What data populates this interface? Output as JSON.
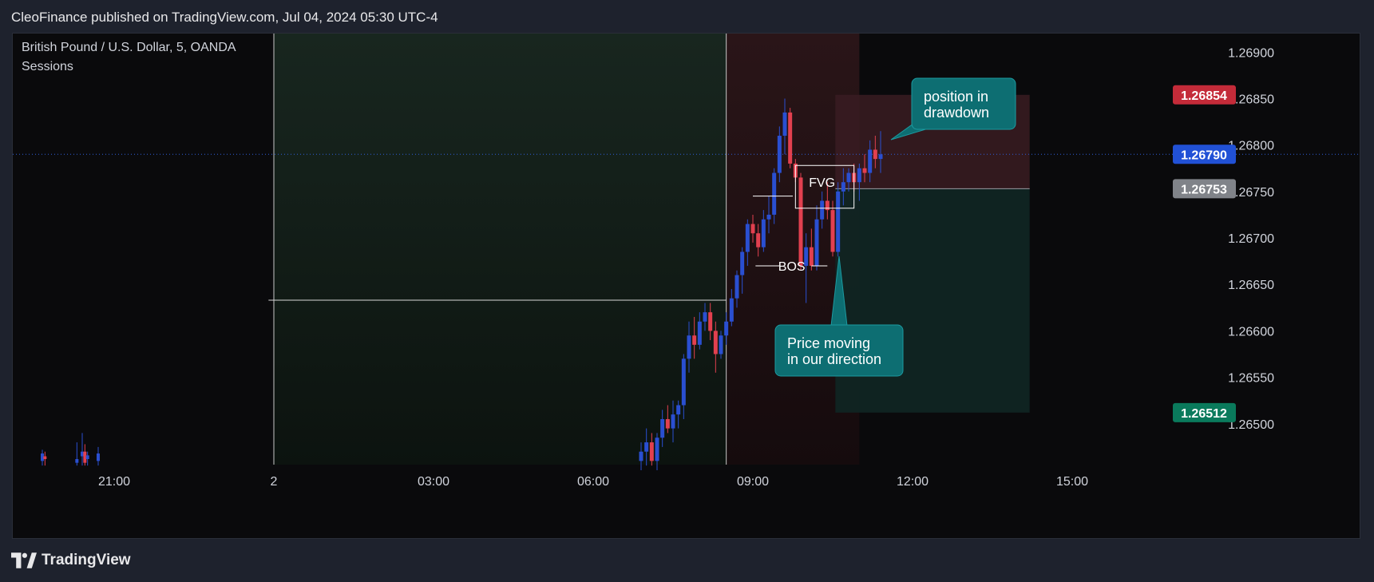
{
  "header": {
    "title": "CleoFinance published on TradingView.com, Jul 04, 2024 05:30 UTC-4"
  },
  "legend": {
    "symbol": "British Pound / U.S. Dollar, 5, OANDA",
    "indicator": "Sessions"
  },
  "footer": {
    "brand": "TradingView"
  },
  "colors": {
    "bull": "#2a4fd1",
    "bear": "#e2404f",
    "stop_zone": "#3a1c22",
    "target_zone": "#0f2623",
    "callout": "#0d6e72",
    "callout_border": "#1c9aa0"
  },
  "annotations": {
    "fvg": "FVG",
    "bos": "BOS",
    "callout_top": "position in\ndrawdown",
    "callout_bottom": "Price moving\nin our direction"
  },
  "chart_data": {
    "type": "candlestick",
    "title": "British Pound / U.S. Dollar, 5, OANDA",
    "xlabel": "",
    "ylabel": "",
    "x_ticks": [
      "21:00",
      "2",
      "03:00",
      "06:00",
      "09:00",
      "12:00",
      "15:00"
    ],
    "y_ticks": [
      1.265,
      1.2655,
      1.266,
      1.2665,
      1.267,
      1.2675,
      1.268,
      1.2685,
      1.269
    ],
    "y_tick_labels": [
      "1.26500",
      "1.26550",
      "1.26600",
      "1.26650",
      "1.26700",
      "1.26750",
      "1.26800",
      "1.26850",
      "1.26900"
    ],
    "ylim": [
      1.26456,
      1.2692
    ],
    "price_tags": [
      {
        "value": 1.26854,
        "label": "1.26854",
        "role": "stop loss",
        "color": "#c42b39"
      },
      {
        "value": 1.2679,
        "label": "1.26790",
        "role": "last price",
        "color": "#2151d6"
      },
      {
        "value": 1.26753,
        "label": "1.26753",
        "role": "entry",
        "color": "#808389"
      },
      {
        "value": 1.26512,
        "label": "1.26512",
        "role": "take profit",
        "color": "#0a7a5c"
      }
    ],
    "position": {
      "type": "short",
      "entry": 1.26753,
      "stop": 1.26854,
      "target": 1.26512
    },
    "session_level": 1.26633,
    "candles": [
      {
        "t": 6.9,
        "o": 1.2646,
        "h": 1.2648,
        "l": 1.2645,
        "c": 1.2647
      },
      {
        "t": 7.0,
        "o": 1.2647,
        "h": 1.26495,
        "l": 1.26455,
        "c": 1.2648
      },
      {
        "t": 7.1,
        "o": 1.2648,
        "h": 1.2649,
        "l": 1.26455,
        "c": 1.2646
      },
      {
        "t": 7.2,
        "o": 1.2646,
        "h": 1.2649,
        "l": 1.2645,
        "c": 1.26485
      },
      {
        "t": 7.3,
        "o": 1.26485,
        "h": 1.26515,
        "l": 1.26475,
        "c": 1.26505
      },
      {
        "t": 7.4,
        "o": 1.26505,
        "h": 1.2652,
        "l": 1.2649,
        "c": 1.26495
      },
      {
        "t": 7.5,
        "o": 1.26495,
        "h": 1.26525,
        "l": 1.2648,
        "c": 1.2651
      },
      {
        "t": 7.6,
        "o": 1.2651,
        "h": 1.26525,
        "l": 1.26495,
        "c": 1.2652
      },
      {
        "t": 7.7,
        "o": 1.2652,
        "h": 1.26575,
        "l": 1.26505,
        "c": 1.2657
      },
      {
        "t": 7.8,
        "o": 1.2657,
        "h": 1.2661,
        "l": 1.26555,
        "c": 1.26595
      },
      {
        "t": 7.9,
        "o": 1.26595,
        "h": 1.26615,
        "l": 1.2657,
        "c": 1.26585
      },
      {
        "t": 8.0,
        "o": 1.26585,
        "h": 1.2662,
        "l": 1.2658,
        "c": 1.2661
      },
      {
        "t": 8.1,
        "o": 1.2661,
        "h": 1.2663,
        "l": 1.266,
        "c": 1.2662
      },
      {
        "t": 8.2,
        "o": 1.2662,
        "h": 1.2663,
        "l": 1.2659,
        "c": 1.266
      },
      {
        "t": 8.3,
        "o": 1.266,
        "h": 1.2661,
        "l": 1.26555,
        "c": 1.26575
      },
      {
        "t": 8.4,
        "o": 1.26575,
        "h": 1.266,
        "l": 1.2657,
        "c": 1.26595
      },
      {
        "t": 8.5,
        "o": 1.26595,
        "h": 1.2662,
        "l": 1.26585,
        "c": 1.2661
      },
      {
        "t": 8.6,
        "o": 1.2661,
        "h": 1.26645,
        "l": 1.26605,
        "c": 1.26635
      },
      {
        "t": 8.7,
        "o": 1.26635,
        "h": 1.26665,
        "l": 1.26625,
        "c": 1.2666
      },
      {
        "t": 8.8,
        "o": 1.2666,
        "h": 1.2669,
        "l": 1.2664,
        "c": 1.26685
      },
      {
        "t": 8.9,
        "o": 1.26685,
        "h": 1.2672,
        "l": 1.2667,
        "c": 1.26715
      },
      {
        "t": 9.0,
        "o": 1.26715,
        "h": 1.26725,
        "l": 1.26695,
        "c": 1.26705
      },
      {
        "t": 9.1,
        "o": 1.26705,
        "h": 1.26715,
        "l": 1.2668,
        "c": 1.2669
      },
      {
        "t": 9.2,
        "o": 1.2669,
        "h": 1.2673,
        "l": 1.26685,
        "c": 1.2672
      },
      {
        "t": 9.3,
        "o": 1.2672,
        "h": 1.26745,
        "l": 1.26705,
        "c": 1.26725
      },
      {
        "t": 9.4,
        "o": 1.26725,
        "h": 1.26775,
        "l": 1.26715,
        "c": 1.2677
      },
      {
        "t": 9.5,
        "o": 1.2677,
        "h": 1.2682,
        "l": 1.2676,
        "c": 1.2681
      },
      {
        "t": 9.6,
        "o": 1.2681,
        "h": 1.2685,
        "l": 1.2679,
        "c": 1.26835
      },
      {
        "t": 9.7,
        "o": 1.26835,
        "h": 1.2684,
        "l": 1.26775,
        "c": 1.2678
      },
      {
        "t": 9.8,
        "o": 1.2678,
        "h": 1.26785,
        "l": 1.2676,
        "c": 1.26765
      },
      {
        "t": 9.9,
        "o": 1.26765,
        "h": 1.2677,
        "l": 1.26665,
        "c": 1.2667
      },
      {
        "t": 10.0,
        "o": 1.2667,
        "h": 1.26705,
        "l": 1.2663,
        "c": 1.2669
      },
      {
        "t": 10.1,
        "o": 1.2669,
        "h": 1.2671,
        "l": 1.26665,
        "c": 1.2667
      },
      {
        "t": 10.2,
        "o": 1.2667,
        "h": 1.26735,
        "l": 1.26665,
        "c": 1.2672
      },
      {
        "t": 10.3,
        "o": 1.2672,
        "h": 1.2675,
        "l": 1.2671,
        "c": 1.2674
      },
      {
        "t": 10.4,
        "o": 1.2674,
        "h": 1.2676,
        "l": 1.2672,
        "c": 1.2673
      },
      {
        "t": 10.5,
        "o": 1.2673,
        "h": 1.2674,
        "l": 1.2668,
        "c": 1.26685
      },
      {
        "t": 10.6,
        "o": 1.26685,
        "h": 1.2676,
        "l": 1.2668,
        "c": 1.2675
      },
      {
        "t": 10.7,
        "o": 1.2675,
        "h": 1.26775,
        "l": 1.26735,
        "c": 1.2676
      },
      {
        "t": 10.8,
        "o": 1.2676,
        "h": 1.26775,
        "l": 1.2675,
        "c": 1.2677
      },
      {
        "t": 10.9,
        "o": 1.2677,
        "h": 1.2678,
        "l": 1.2675,
        "c": 1.2676
      },
      {
        "t": 11.0,
        "o": 1.2676,
        "h": 1.2678,
        "l": 1.2674,
        "c": 1.26775
      },
      {
        "t": 11.1,
        "o": 1.26775,
        "h": 1.2679,
        "l": 1.2676,
        "c": 1.2677
      },
      {
        "t": 11.2,
        "o": 1.2677,
        "h": 1.26805,
        "l": 1.2676,
        "c": 1.26795
      },
      {
        "t": 11.3,
        "o": 1.26795,
        "h": 1.2681,
        "l": 1.26775,
        "c": 1.26785
      },
      {
        "t": 11.4,
        "o": 1.26785,
        "h": 1.26815,
        "l": 1.2677,
        "c": 1.2679
      }
    ]
  }
}
